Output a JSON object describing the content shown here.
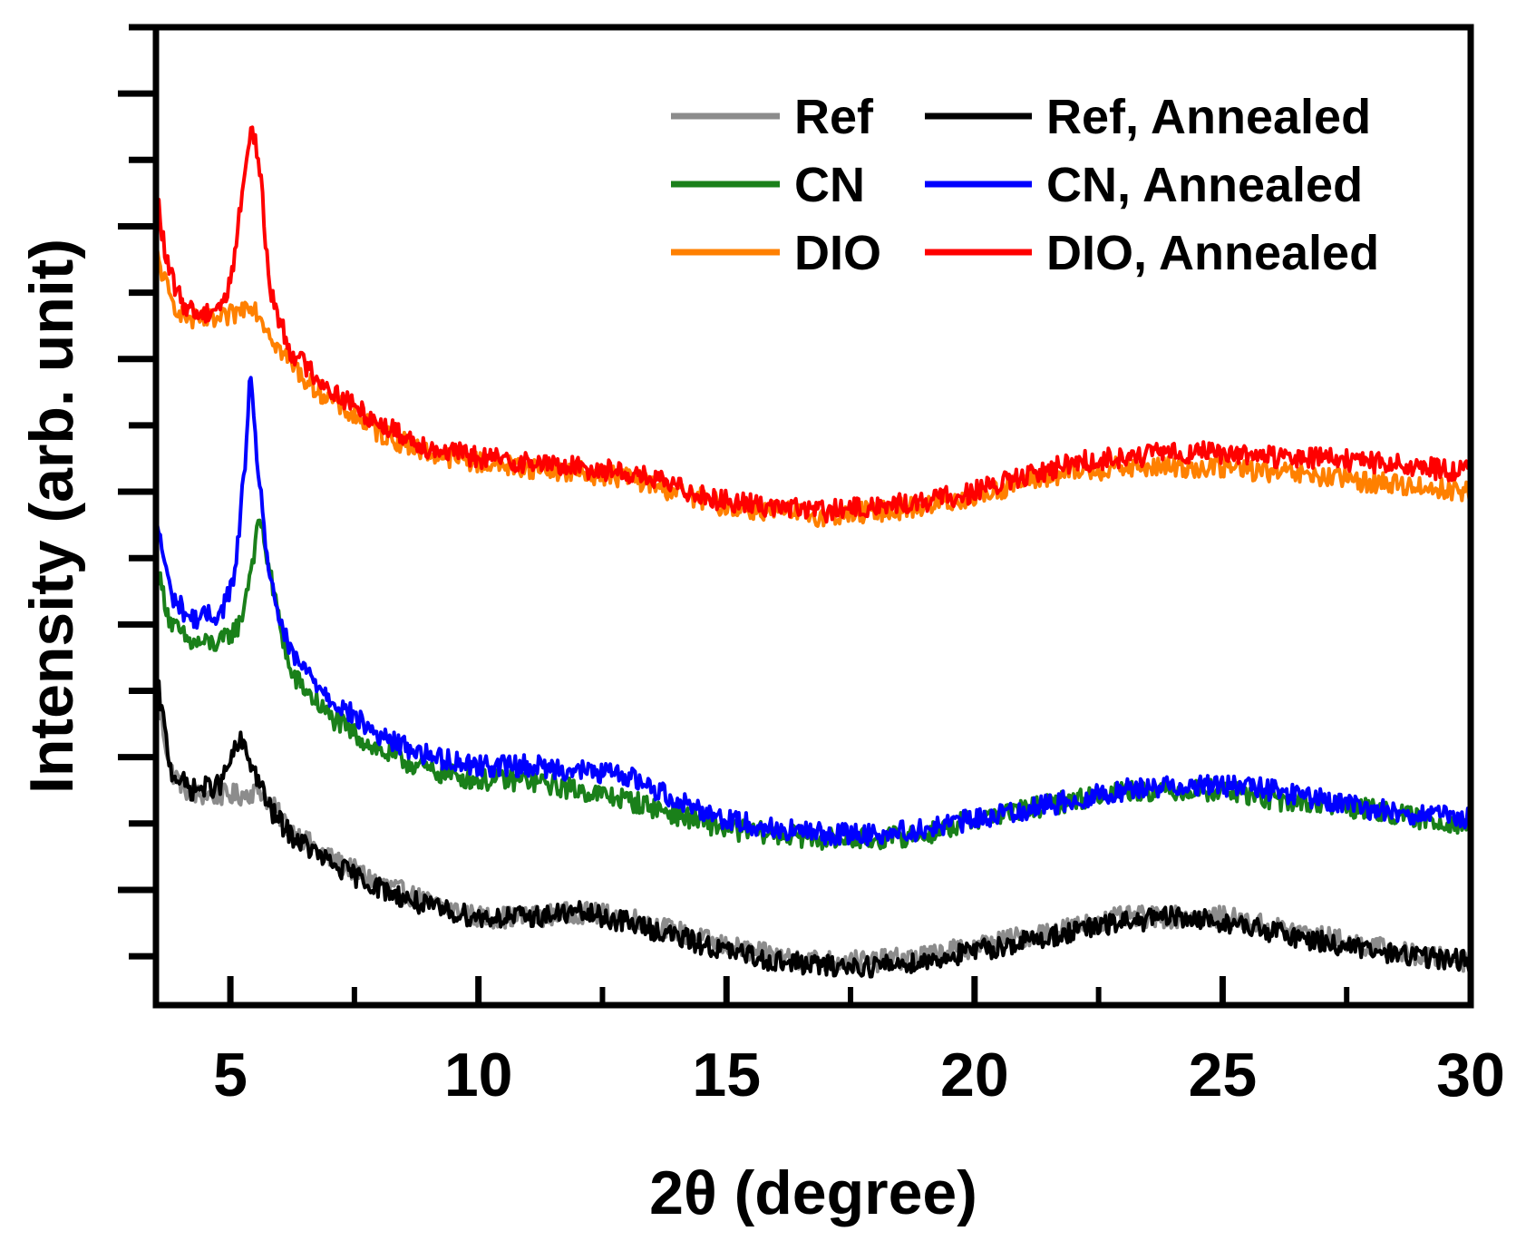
{
  "chart_data": {
    "type": "line",
    "title": "",
    "xlabel": "2θ (degree)",
    "ylabel": "Intensity (arb. unit)",
    "xlim": [
      3.5,
      30
    ],
    "ylim": [
      0,
      1
    ],
    "x_ticks": [
      5,
      10,
      15,
      20,
      25,
      30
    ],
    "x_tick_labels": [
      "5",
      "10",
      "15",
      "20",
      "25",
      "30"
    ],
    "y_ticks_unlabeled": true,
    "legend_position": "top-right",
    "series": [
      {
        "name": "Ref",
        "color": "#8c8c8c",
        "shift": 0.0,
        "x": [
          3.5,
          3.8,
          4.2,
          4.8,
          5.2,
          5.6,
          6.2,
          7.0,
          8.0,
          9.0,
          10.0,
          11.0,
          12.0,
          13.0,
          14.0,
          15.0,
          16.0,
          17.0,
          18.0,
          19.0,
          20.0,
          21.0,
          22.0,
          23.0,
          24.0,
          25.0,
          26.0,
          27.0,
          28.0,
          29.0,
          30.0
        ],
        "y": [
          0.32,
          0.24,
          0.215,
          0.215,
          0.215,
          0.22,
          0.18,
          0.15,
          0.125,
          0.105,
          0.09,
          0.09,
          0.095,
          0.09,
          0.075,
          0.06,
          0.05,
          0.045,
          0.045,
          0.05,
          0.06,
          0.07,
          0.08,
          0.09,
          0.09,
          0.09,
          0.08,
          0.07,
          0.06,
          0.05,
          0.045
        ]
      },
      {
        "name": "Ref, Annealed",
        "color": "#000000",
        "shift": 0.0,
        "x": [
          3.5,
          3.8,
          4.2,
          4.8,
          5.0,
          5.2,
          5.4,
          5.8,
          6.2,
          7.0,
          8.0,
          9.0,
          10.0,
          11.0,
          12.0,
          13.0,
          14.0,
          15.0,
          16.0,
          17.0,
          18.0,
          19.0,
          20.0,
          21.0,
          22.0,
          23.0,
          24.0,
          25.0,
          26.0,
          27.0,
          28.0,
          29.0,
          30.0
        ],
        "y": [
          0.34,
          0.24,
          0.22,
          0.225,
          0.25,
          0.27,
          0.25,
          0.2,
          0.175,
          0.145,
          0.12,
          0.1,
          0.09,
          0.09,
          0.095,
          0.085,
          0.07,
          0.055,
          0.045,
          0.04,
          0.04,
          0.045,
          0.055,
          0.065,
          0.075,
          0.085,
          0.09,
          0.085,
          0.075,
          0.065,
          0.055,
          0.05,
          0.045
        ]
      },
      {
        "name": "CN",
        "color": "#1a801a",
        "shift": 0.0,
        "x": [
          3.5,
          3.8,
          4.2,
          4.8,
          5.2,
          5.5,
          5.6,
          5.8,
          6.2,
          7.0,
          8.0,
          9.0,
          10.0,
          11.0,
          12.0,
          13.0,
          14.0,
          15.0,
          16.0,
          17.0,
          18.0,
          19.0,
          20.0,
          21.0,
          22.0,
          23.0,
          24.0,
          25.0,
          26.0,
          27.0,
          28.0,
          29.0,
          30.0
        ],
        "y": [
          0.45,
          0.39,
          0.37,
          0.37,
          0.39,
          0.47,
          0.5,
          0.44,
          0.34,
          0.295,
          0.26,
          0.24,
          0.23,
          0.23,
          0.22,
          0.21,
          0.195,
          0.18,
          0.175,
          0.17,
          0.17,
          0.175,
          0.19,
          0.2,
          0.21,
          0.22,
          0.22,
          0.22,
          0.21,
          0.205,
          0.2,
          0.19,
          0.185
        ]
      },
      {
        "name": "CN, Annealed",
        "color": "#0000ff",
        "shift": 0.0,
        "x": [
          3.5,
          3.8,
          4.2,
          4.8,
          5.1,
          5.3,
          5.4,
          5.5,
          5.8,
          6.2,
          7.0,
          8.0,
          9.0,
          10.0,
          11.0,
          12.0,
          13.0,
          14.0,
          15.0,
          16.0,
          17.0,
          18.0,
          19.0,
          20.0,
          21.0,
          22.0,
          23.0,
          24.0,
          25.0,
          26.0,
          27.0,
          28.0,
          29.0,
          30.0
        ],
        "y": [
          0.5,
          0.42,
          0.395,
          0.4,
          0.44,
          0.56,
          0.64,
          0.58,
          0.43,
          0.36,
          0.315,
          0.275,
          0.255,
          0.245,
          0.245,
          0.24,
          0.235,
          0.21,
          0.19,
          0.18,
          0.175,
          0.175,
          0.18,
          0.19,
          0.2,
          0.21,
          0.22,
          0.225,
          0.225,
          0.22,
          0.21,
          0.2,
          0.195,
          0.19
        ]
      },
      {
        "name": "DIO",
        "color": "#ff8000",
        "shift": 0.0,
        "x": [
          3.5,
          3.8,
          4.2,
          4.8,
          5.2,
          5.4,
          5.6,
          6.0,
          6.5,
          7.0,
          8.0,
          9.0,
          10.0,
          11.0,
          12.0,
          13.0,
          14.0,
          15.0,
          16.0,
          17.0,
          18.0,
          19.0,
          20.0,
          21.0,
          22.0,
          23.0,
          24.0,
          25.0,
          26.0,
          27.0,
          28.0,
          29.0,
          30.0
        ],
        "y": [
          0.77,
          0.72,
          0.7,
          0.7,
          0.71,
          0.72,
          0.705,
          0.67,
          0.64,
          0.62,
          0.585,
          0.565,
          0.555,
          0.55,
          0.545,
          0.54,
          0.525,
          0.51,
          0.505,
          0.5,
          0.505,
          0.51,
          0.52,
          0.535,
          0.545,
          0.55,
          0.55,
          0.55,
          0.545,
          0.54,
          0.535,
          0.53,
          0.525
        ]
      },
      {
        "name": "DIO, Annealed",
        "color": "#ff0000",
        "shift": 0.0,
        "x": [
          3.5,
          3.7,
          4.0,
          4.4,
          4.9,
          5.1,
          5.3,
          5.45,
          5.6,
          5.8,
          6.2,
          7.0,
          8.0,
          9.0,
          10.0,
          11.0,
          12.0,
          13.0,
          14.0,
          15.0,
          16.0,
          17.0,
          18.0,
          19.0,
          20.0,
          21.0,
          22.0,
          23.0,
          24.0,
          25.0,
          26.0,
          27.0,
          28.0,
          29.0,
          30.0
        ],
        "y": [
          0.84,
          0.76,
          0.72,
          0.705,
          0.72,
          0.77,
          0.86,
          0.9,
          0.85,
          0.73,
          0.67,
          0.63,
          0.595,
          0.57,
          0.56,
          0.555,
          0.55,
          0.545,
          0.53,
          0.515,
          0.51,
          0.505,
          0.51,
          0.515,
          0.525,
          0.54,
          0.555,
          0.56,
          0.565,
          0.565,
          0.56,
          0.56,
          0.555,
          0.55,
          0.545
        ]
      }
    ],
    "legend_layout": [
      [
        "Ref",
        "Ref, Annealed"
      ],
      [
        "CN",
        "CN, Annealed"
      ],
      [
        "DIO",
        "DIO, Annealed"
      ]
    ]
  }
}
